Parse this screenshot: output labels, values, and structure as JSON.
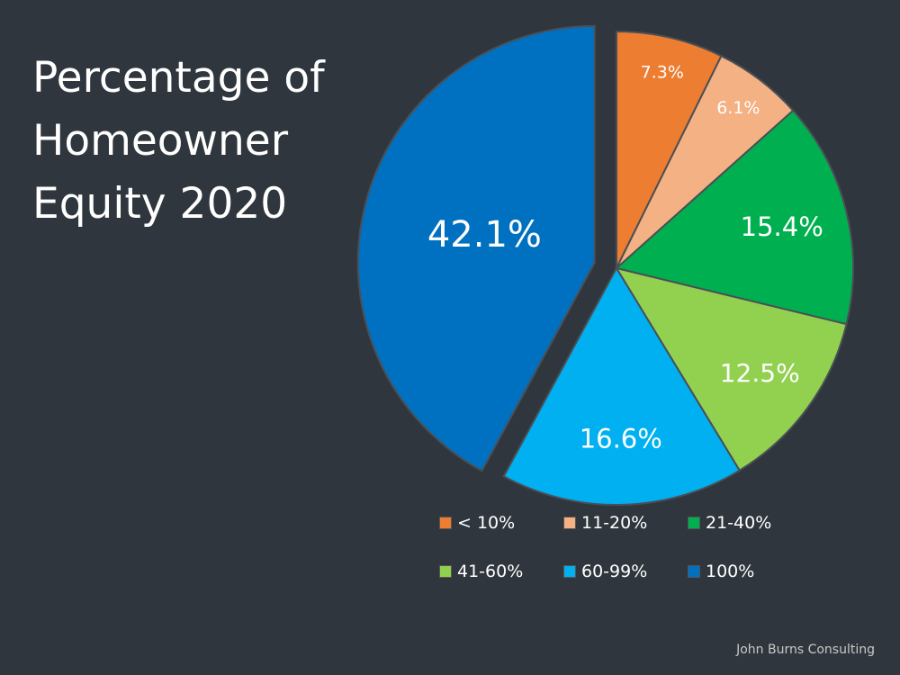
{
  "chart_data": {
    "type": "pie",
    "title": "Percentage of Homeowner Equity 2020",
    "slices": [
      {
        "label": "< 10%",
        "value": 7.3,
        "display": "7.3%",
        "color": "#ed7d31"
      },
      {
        "label": "11-20%",
        "value": 6.1,
        "display": "6.1%",
        "color": "#f4b183"
      },
      {
        "label": "21-40%",
        "value": 15.4,
        "display": "15.4%",
        "color": "#00b050"
      },
      {
        "label": "41-60%",
        "value": 12.5,
        "display": "12.5%",
        "color": "#92d050"
      },
      {
        "label": "60-99%",
        "value": 16.6,
        "display": "16.6%",
        "color": "#00b0f0"
      },
      {
        "label": "100%",
        "value": 42.1,
        "display": "42.1%",
        "color": "#0070c0",
        "exploded": true
      }
    ],
    "start_angle": "12 o'clock",
    "direction": "clockwise",
    "legend_placement": "bottom"
  },
  "source": "John Burns Consulting"
}
